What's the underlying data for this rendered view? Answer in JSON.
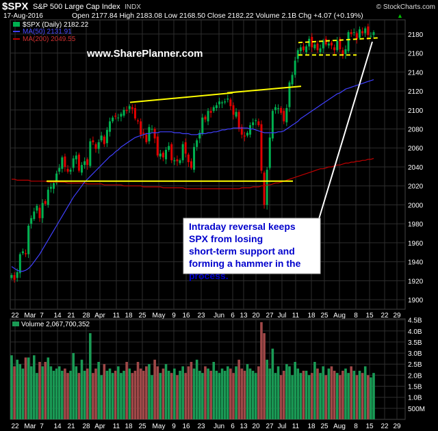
{
  "header": {
    "symbol": "$SPX",
    "name": "S&P 500 Large Cap Index",
    "exchange": "INDX",
    "date": "17-Aug-2016",
    "quote": "Open 2177.84  High 2183.08  Low 2168.50  Close 2182.22  Volume 2.1B  Chg +4.07 (+0.19%)",
    "quote_arrow": "▲",
    "brand": "© StockCharts.com"
  },
  "legend": {
    "price": "$SPX (Daily) 2182.22",
    "ma50": "MA(50) 2131.91",
    "ma200": "MA(200) 2049.55"
  },
  "watermark": "www.SharePlanner.com",
  "annotation": "Intraday reversal keeps SPX from losing short-term support and forming a hammer in the process.",
  "volume_label": "Volume 2,067,700,352",
  "colors": {
    "up": "#00b050",
    "down": "#e00000",
    "ma50": "#4040ff",
    "ma200": "#c00000",
    "trend": "#ffff00",
    "vol_up": "#1a9a55",
    "vol_down": "#a04848",
    "grid": "#2e2e2e"
  },
  "chart_data": [
    {
      "type": "candlestick",
      "title": "$SPX (Daily)",
      "ylim": [
        1890,
        2195
      ],
      "y_ticks": [
        1900,
        1920,
        1940,
        1960,
        1980,
        2000,
        2020,
        2040,
        2060,
        2080,
        2100,
        2120,
        2140,
        2160,
        2180
      ],
      "x_tick_labels": [
        "22",
        "Mar",
        "7",
        "14",
        "21",
        "28",
        "Apr",
        "11",
        "18",
        "25",
        "May",
        "9",
        "16",
        "23",
        "Jun",
        "6",
        "13",
        "20",
        "27",
        "Jul",
        "11",
        "18",
        "25",
        "Aug",
        "8",
        "15",
        "22",
        "29"
      ],
      "close": [
        1926,
        1921,
        1929,
        1948,
        1951,
        1948,
        1978,
        1986,
        1993,
        1999,
        1986,
        2002,
        2001,
        2016,
        2019,
        2023,
        2033,
        2039,
        2050,
        2040,
        2035,
        2037,
        2049,
        2052,
        2036,
        2042,
        2046,
        2042,
        2067,
        2066,
        2059,
        2066,
        2073,
        2064,
        2079,
        2088,
        2092,
        2093,
        2092,
        2096,
        2100,
        2099,
        2104,
        2101,
        2091,
        2088,
        2074,
        2075,
        2066,
        2082,
        2080,
        2070,
        2052,
        2054,
        2050,
        2058,
        2062,
        2047,
        2047,
        2046,
        2047,
        2064,
        2054,
        2045,
        2039,
        2061,
        2068,
        2076,
        2092,
        2090,
        2099,
        2097,
        2103,
        2105,
        2109,
        2108,
        2109,
        2112,
        2104,
        2095,
        2098,
        2080,
        2074,
        2072,
        2076,
        2084,
        2087,
        2089,
        2084,
        2036,
        2000,
        2037,
        2071,
        2099,
        2103,
        2102,
        2097,
        2088,
        2102,
        2129,
        2137,
        2152,
        2163,
        2166,
        2163,
        2167,
        2175,
        2166,
        2169,
        2163,
        2165,
        2173,
        2169,
        2170,
        2168,
        2163,
        2173,
        2164,
        2158,
        2164,
        2182,
        2180,
        2182,
        2175,
        2185,
        2181,
        2186,
        2179,
        2178,
        2182
      ],
      "ma50": [
        1935,
        1933,
        1931,
        1930,
        1930,
        1931,
        1933,
        1936,
        1940,
        1944,
        1948,
        1953,
        1958,
        1963,
        1968,
        1973,
        1978,
        1983,
        1988,
        1993,
        1998,
        2003,
        2008,
        2012,
        2016,
        2020,
        2024,
        2027,
        2030,
        2033,
        2036,
        2039,
        2042,
        2045,
        2048,
        2051,
        2053,
        2056,
        2058,
        2061,
        2063,
        2065,
        2067,
        2069,
        2071,
        2072,
        2073,
        2074,
        2075,
        2075,
        2076,
        2076,
        2076,
        2077,
        2077,
        2077,
        2077,
        2077,
        2076,
        2076,
        2076,
        2075,
        2075,
        2075,
        2074,
        2074,
        2074,
        2075,
        2075,
        2075,
        2076,
        2076,
        2077,
        2077,
        2078,
        2079,
        2079,
        2080,
        2080,
        2081,
        2081,
        2081,
        2081,
        2081,
        2081,
        2080,
        2080,
        2079,
        2078,
        2077,
        2076,
        2076,
        2076,
        2076,
        2076,
        2077,
        2077,
        2078,
        2080,
        2082,
        2084,
        2086,
        2088,
        2091,
        2093,
        2095,
        2097,
        2099,
        2101,
        2103,
        2105,
        2107,
        2109,
        2111,
        2113,
        2115,
        2117,
        2118,
        2120,
        2122,
        2123,
        2124,
        2125,
        2126,
        2127,
        2128,
        2129,
        2130,
        2131,
        2132
      ],
      "ma200": [
        2027,
        2027,
        2026,
        2026,
        2026,
        2026,
        2026,
        2025,
        2025,
        2025,
        2025,
        2025,
        2025,
        2024,
        2024,
        2024,
        2024,
        2024,
        2024,
        2024,
        2023,
        2023,
        2023,
        2023,
        2023,
        2023,
        2023,
        2022,
        2022,
        2022,
        2022,
        2022,
        2022,
        2021,
        2021,
        2021,
        2021,
        2021,
        2021,
        2021,
        2020,
        2020,
        2020,
        2020,
        2020,
        2020,
        2020,
        2019,
        2019,
        2019,
        2019,
        2019,
        2019,
        2019,
        2018,
        2018,
        2018,
        2018,
        2018,
        2018,
        2018,
        2018,
        2017,
        2017,
        2017,
        2017,
        2017,
        2017,
        2017,
        2017,
        2017,
        2017,
        2017,
        2017,
        2017,
        2017,
        2017,
        2017,
        2017,
        2017,
        2017,
        2017,
        2018,
        2018,
        2018,
        2018,
        2019,
        2019,
        2019,
        2020,
        2020,
        2021,
        2021,
        2022,
        2023,
        2023,
        2024,
        2025,
        2026,
        2027,
        2028,
        2029,
        2030,
        2031,
        2032,
        2033,
        2034,
        2035,
        2036,
        2037,
        2038,
        2038,
        2039,
        2040,
        2040,
        2041,
        2042,
        2042,
        2043,
        2044,
        2044,
        2045,
        2045,
        2046,
        2046,
        2047,
        2047,
        2048,
        2048,
        2049
      ],
      "annotation_lines": [
        {
          "from": [
            2016.0,
            2108
          ],
          "to": [
            2062.0,
            2118
          ]
        },
        {
          "from": [
            2059.0,
            2118
          ],
          "to": [
            2110.5,
            2126
          ]
        },
        {
          "from": [
            1995.5,
            2025
          ],
          "to": [
            2106.5,
            2025
          ]
        },
        {
          "from": [
            2113.0,
            2169
          ],
          "to": [
            2159.0,
            2176
          ]
        },
        {
          "from": [
            2113.5,
            2158
          ],
          "to": [
            2133.5,
            2158
          ]
        }
      ]
    },
    {
      "type": "bar",
      "title": "Volume",
      "ylim": [
        0,
        4.55
      ],
      "y_tick_labels": [
        "4.5B",
        "4.0B",
        "3.5B",
        "3.0B",
        "2.5B",
        "2.0B",
        "1.5B",
        "1.0B",
        "500M"
      ],
      "y_tick_values": [
        4.5,
        4.0,
        3.5,
        3.0,
        2.5,
        2.0,
        1.5,
        1.0,
        0.5
      ],
      "values_billions": [
        2.9,
        2.4,
        2.7,
        2.5,
        2.3,
        2.8,
        2.8,
        2.4,
        2.9,
        2.1,
        2.6,
        2.4,
        2.6,
        2.8,
        2.4,
        2.2,
        2.3,
        2.4,
        2.2,
        2.3,
        2.1,
        2.2,
        3.0,
        2.4,
        2.1,
        2.7,
        2.2,
        2.3,
        3.9,
        2.1,
        2.3,
        2.6,
        2.0,
        2.5,
        2.2,
        2.3,
        2.1,
        2.2,
        2.4,
        2.1,
        2.2,
        2.6,
        2.3,
        2.1,
        2.2,
        2.6,
        2.3,
        2.2,
        2.4,
        2.5,
        2.0,
        2.7,
        2.4,
        2.1,
        2.3,
        2.5,
        2.2,
        2.1,
        2.3,
        2.0,
        2.2,
        2.4,
        2.1,
        2.4,
        2.6,
        2.3,
        2.7,
        2.2,
        2.1,
        2.4,
        2.3,
        2.2,
        2.6,
        2.2,
        2.1,
        2.3,
        2.2,
        2.4,
        2.3,
        2.1,
        2.4,
        2.7,
        2.3,
        2.2,
        2.5,
        2.3,
        2.2,
        2.1,
        2.4,
        4.4,
        3.9,
        2.7,
        2.3,
        3.2,
        2.1,
        2.4,
        2.0,
        2.2,
        2.5,
        2.4,
        2.0,
        2.6,
        2.3,
        2.1,
        2.2,
        2.2,
        2.0,
        2.1,
        2.6,
        2.3,
        2.1,
        2.4,
        2.0,
        2.3,
        2.4,
        2.2,
        2.1,
        2.0,
        2.2,
        2.3,
        2.1,
        2.4,
        2.2,
        2.0,
        2.2,
        2.1,
        2.4,
        2.0,
        1.9,
        2.1
      ]
    }
  ]
}
